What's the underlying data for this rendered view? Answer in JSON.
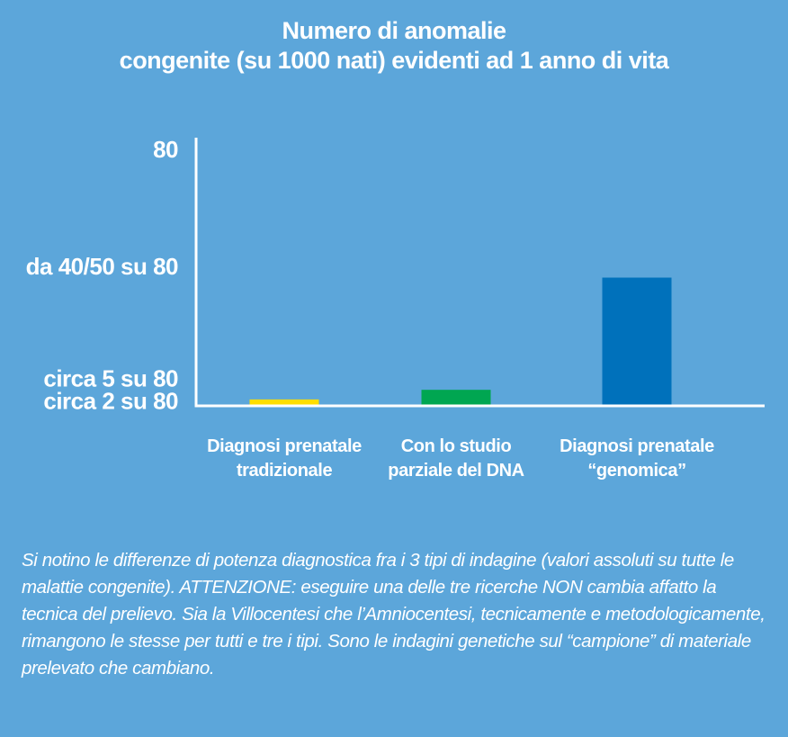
{
  "chart_data": {
    "type": "bar",
    "title_lines": [
      "Numero di anomalie",
      "congenite (su 1000 nati) evidenti ad 1 anno di vita"
    ],
    "categories": [
      [
        "Diagnosi prenatale",
        "tradizionale"
      ],
      [
        "Con lo studio",
        "parziale del DNA"
      ],
      [
        "Diagnosi prenatale",
        "“genomica”"
      ]
    ],
    "values": [
      2,
      5,
      40
    ],
    "colors": [
      "#ffde00",
      "#00a651",
      "#0071bb"
    ],
    "yticks": [
      {
        "value": 80,
        "label": "80"
      },
      {
        "value": 43.5,
        "label": "da 40/50 su 80"
      },
      {
        "value": 8.5,
        "label": "circa 5 su 80"
      },
      {
        "value": 1.5,
        "label": "circa 2 su 80"
      }
    ],
    "ylim": [
      0,
      80
    ],
    "xlabel": "",
    "ylabel": ""
  },
  "caption": "Si notino le differenze di potenza diagnostica fra i 3 tipi di indagine (valori assoluti su tutte le malattie congenite). ATTENZIONE: eseguire una delle tre ricerche NON cambia affatto la tecnica del prelievo. Sia la Villocentesi che l’Amniocentesi, tecnicamente e metodologicamente, rimangono le stesse per tutti e tre i tipi. Sono le indagini genetiche sul “campione” di materiale prelevato che cambiano."
}
